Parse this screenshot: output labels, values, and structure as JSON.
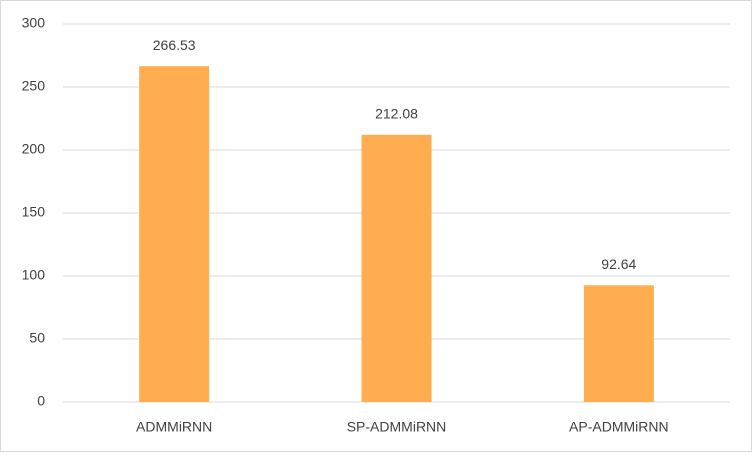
{
  "chart_data": {
    "type": "bar",
    "categories": [
      "ADMMiRNN",
      "SP-ADMMiRNN",
      "AP-ADMMiRNN"
    ],
    "values": [
      266.53,
      212.08,
      92.64
    ],
    "color": "#ffad4f",
    "ylim": [
      0,
      300
    ],
    "yticks": [
      0,
      50,
      100,
      150,
      200,
      250,
      300
    ],
    "grid": true
  }
}
